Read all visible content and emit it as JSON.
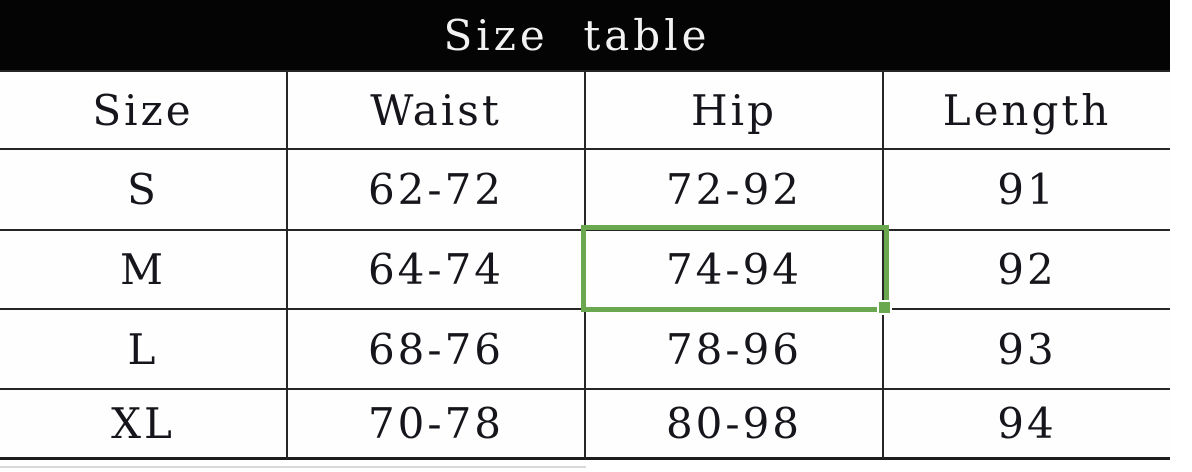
{
  "title_bar": {
    "label": "Size  table"
  },
  "chart_data": {
    "type": "table",
    "title": "Size table",
    "columns": [
      "Size",
      "Waist",
      "Hip",
      "Length"
    ],
    "rows": [
      [
        "S",
        "62-72",
        "72-92",
        "91"
      ],
      [
        "M",
        "64-74",
        "74-94",
        "92"
      ],
      [
        "L",
        "68-76",
        "78-96",
        "93"
      ],
      [
        "XL",
        "70-78",
        "80-98",
        "94"
      ]
    ],
    "selection": {
      "row": "M",
      "column": "Hip",
      "value": "74-94"
    }
  },
  "colors": {
    "banner_bg": "#040404",
    "banner_text": "#f2f2f2",
    "grid_line": "#262626",
    "cell_text": "#15151b",
    "selection_green": "#69a84f"
  }
}
